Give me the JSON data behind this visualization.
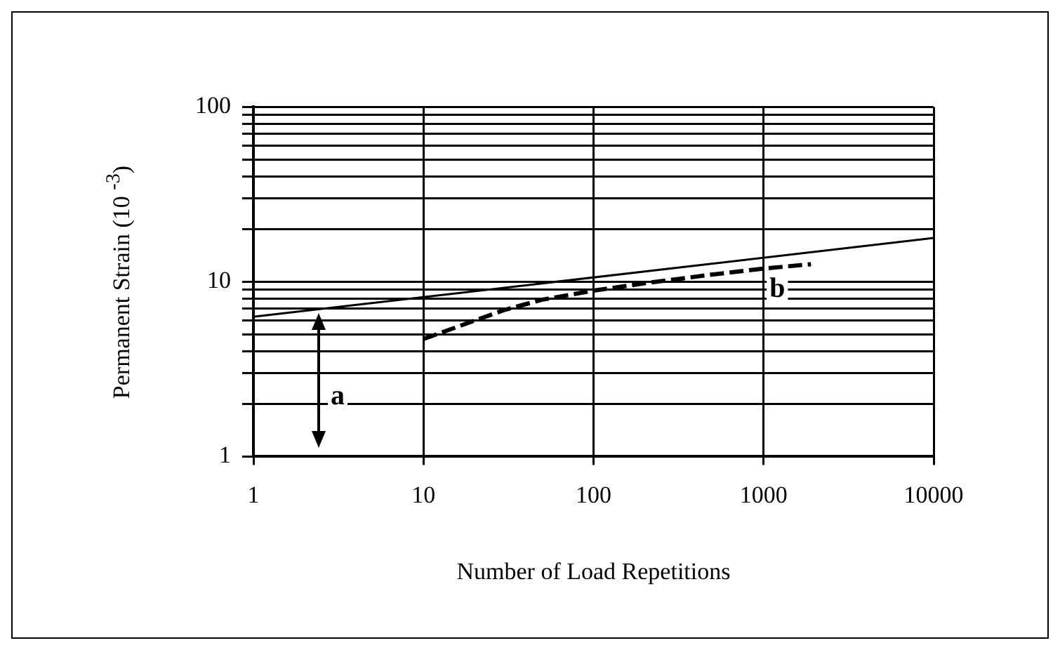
{
  "chart_data": {
    "type": "line",
    "xlabel": "Number of Load Repetitions",
    "ylabel": "Permanent Strain (10 $^{-3}$)",
    "log": "xy",
    "grid": true,
    "legend": false,
    "marker": "none",
    "xlim": [
      1,
      10000
    ],
    "xticks": [
      1,
      10,
      100,
      1000,
      10000
    ],
    "ylim": [
      1,
      100
    ],
    "yticks": [
      1,
      {
        "value": 2,
        "label": null
      },
      {
        "value": 3,
        "label": null
      },
      {
        "value": 4,
        "label": null
      },
      {
        "value": 5,
        "label": null
      },
      {
        "value": 6,
        "label": null
      },
      {
        "value": 7,
        "label": null
      },
      {
        "value": 8,
        "label": null
      },
      {
        "value": 9,
        "label": null
      },
      10,
      {
        "value": 20,
        "label": null
      },
      {
        "value": 30,
        "label": null
      },
      {
        "value": 40,
        "label": null
      },
      {
        "value": 50,
        "label": null
      },
      {
        "value": 60,
        "label": null
      },
      {
        "value": 70,
        "label": null
      },
      {
        "value": 80,
        "label": null
      },
      {
        "value": 90,
        "label": null
      },
      100
    ],
    "series": [
      {
        "type": "line",
        "color": "#000000",
        "line_style": "solid",
        "x": [
          1,
          10000
        ],
        "values": [
          6.3,
          17.8
        ]
      },
      {
        "type": "line",
        "color": "#000000",
        "line_style": "dashed",
        "x": [
          10,
          20,
          30,
          50,
          100,
          200,
          500,
          1000,
          1900
        ],
        "values": [
          4.7,
          6.0,
          6.9,
          7.9,
          8.9,
          9.8,
          11.0,
          11.9,
          12.6
        ]
      }
    ],
    "annotations": [
      "a",
      "b"
    ]
  }
}
